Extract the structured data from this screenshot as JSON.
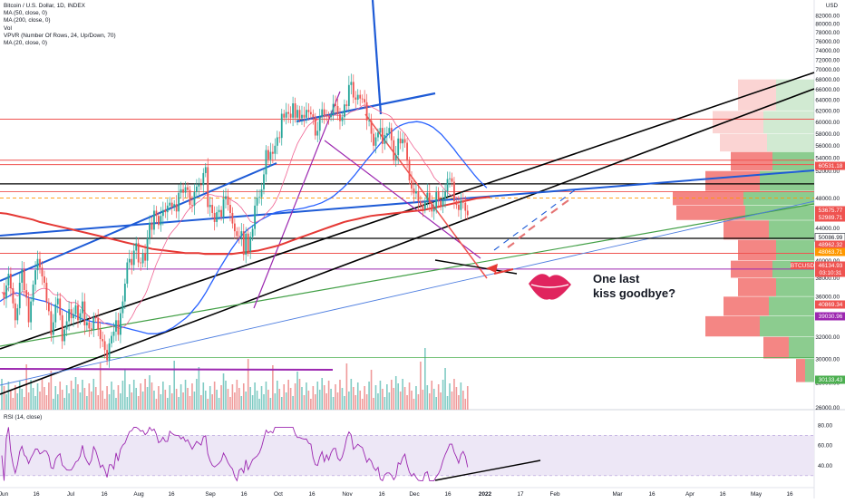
{
  "legend": {
    "title": "Bitcoin / U.S. Dollar, 1D, INDEX",
    "ma50": "MA (50, close, 0)",
    "ma200": "MA (200, close, 0)",
    "vol": "Vol",
    "vpvr": "VPVR (Number Of Rows, 24, Up/Down, 70)",
    "ma20": "MA (20, close, 0)",
    "rsi": "RSI (14, close)"
  },
  "currency": "USD",
  "note": {
    "line1": "One last",
    "line2": "kiss goodbye?"
  },
  "colors": {
    "up": "#26a69a",
    "down": "#ef5350",
    "ma200": "#e53935",
    "ma50": "#2962ff",
    "ma20": "#f06292",
    "trend_black": "#000000",
    "trend_blue": "#1e5bd6",
    "trend_green": "#43a047",
    "purple": "#9c27b0",
    "red_line": "#ef5350",
    "rsi_band": "#ede7f6",
    "rsi_line": "#9c27b0"
  },
  "chart_data": {
    "type": "candlestick",
    "price_axis": {
      "min": 26000,
      "max": 84000,
      "scale": "log",
      "ticks": [
        "82000.00",
        "80000.00",
        "78000.00",
        "76000.00",
        "74000.00",
        "72000.00",
        "70000.00",
        "68000.00",
        "66000.00",
        "64000.00",
        "62000.00",
        "60000.00",
        "58000.00",
        "56000.00",
        "54000.00",
        "52000.00",
        "48000.00",
        "44000.00",
        "42000.00",
        "40000.00",
        "38000.00",
        "36000.00",
        "34000.00",
        "32000.00",
        "30000.00",
        "28000.00",
        "26000.00"
      ]
    },
    "time_axis": {
      "labels": [
        "Jun",
        "16",
        "Jul",
        "16",
        "Aug",
        "16",
        "Sep",
        "16",
        "Oct",
        "16",
        "Nov",
        "16",
        "Dec",
        "16",
        "2022",
        "17",
        "Feb",
        "Mar",
        "16",
        "Apr",
        "16",
        "May",
        "16"
      ]
    },
    "price_labels": [
      {
        "value": "60531.18",
        "color": "#ef5350"
      },
      {
        "value": "53675.77",
        "color": "#ef5350"
      },
      {
        "value": "52989.71",
        "color": "#ef5350"
      },
      {
        "value": "50086.99",
        "color": "#131722"
      },
      {
        "value": "48962.32",
        "color": "#ef5350"
      },
      {
        "value": "48063.71",
        "color": "#ff9800"
      },
      {
        "value": "46134.93",
        "color": "#ef5350"
      },
      {
        "value": "03:10:31",
        "color": "#ef5350"
      },
      {
        "value": "40869.34",
        "color": "#ef5350"
      },
      {
        "value": "39030.96",
        "color": "#9c27b0"
      },
      {
        "value": "30133.43",
        "color": "#4caf50"
      }
    ],
    "symbol_tag": "BTCUSD",
    "rsi_axis": {
      "ticks": [
        "80.00",
        "60.00",
        "40.00"
      ],
      "band": [
        30,
        70
      ]
    },
    "closes": [
      36500,
      35800,
      37200,
      38500,
      36900,
      35300,
      33600,
      34800,
      37500,
      39000,
      36700,
      35900,
      33400,
      35500,
      37300,
      38900,
      40200,
      39200,
      38200,
      37500,
      35400,
      34500,
      32200,
      33400,
      35200,
      35800,
      34100,
      31600,
      32700,
      33500,
      34700,
      33800,
      34200,
      35100,
      33600,
      34300,
      35500,
      33100,
      33400,
      32800,
      32700,
      33900,
      33800,
      32700,
      31800,
      31600,
      30800,
      29900,
      31400,
      32100,
      32500,
      33600,
      32200,
      34300,
      35500,
      37400,
      39800,
      40200,
      39500,
      41200,
      42100,
      39800,
      39700,
      40900,
      40000,
      42700,
      44700,
      43800,
      46300,
      45600,
      44400,
      45600,
      46400,
      46100,
      47000,
      47400,
      46800,
      47200,
      46200,
      48800,
      49300,
      48800,
      49600,
      49200,
      47100,
      47000,
      48900,
      49700,
      50000,
      49900,
      51700,
      52600,
      46800,
      47100,
      46000,
      44800,
      46100,
      46400,
      45500,
      47900,
      48300,
      47100,
      46000,
      44600,
      43600,
      43000,
      42900,
      43600,
      40700,
      43300,
      41100,
      42900,
      43900,
      47000,
      48100,
      48200,
      49300,
      51500,
      55300,
      53800,
      55000,
      54700,
      56000,
      57400,
      57300,
      61500,
      60800,
      61800,
      61500,
      60800,
      63400,
      60800,
      62200,
      60700,
      61300,
      60800,
      62200,
      61800,
      61400,
      60900,
      57700,
      58500,
      60900,
      62300,
      61200,
      61000,
      60900,
      61400,
      63300,
      62900,
      61400,
      60200,
      60900,
      63200,
      62900,
      66900,
      67500,
      64500,
      64100,
      65000,
      64300,
      64200,
      63600,
      60300,
      60300,
      58000,
      56000,
      57400,
      58200,
      59000,
      56300,
      57800,
      58100,
      59000,
      56900,
      53700,
      54500,
      57200,
      56400,
      57100,
      56500,
      53600,
      50600,
      49400,
      48700,
      49000,
      47600,
      47100,
      46500,
      47600,
      48800,
      47400,
      46200,
      46600,
      48900,
      47700,
      46900,
      48000,
      49000,
      50800,
      50900,
      50400,
      47600,
      47100,
      46400,
      47700,
      47400,
      46300,
      45700
    ],
    "ma50": [
      35500,
      35800,
      36000,
      36300,
      36400,
      36300,
      36100,
      35900,
      35800,
      35700,
      35600,
      35500,
      35300,
      35100,
      34900,
      34700,
      34500,
      34300,
      34100,
      33900,
      33700,
      33600,
      33500,
      33400,
      33400,
      33300,
      33300,
      33200,
      33100,
      33000,
      32900,
      32800,
      32700,
      32600,
      32500,
      32400,
      32300,
      32300,
      32300,
      32400,
      32500,
      32700,
      32900,
      33200,
      33500,
      33800,
      34200,
      34700,
      35200,
      35800,
      36500,
      37300,
      38100,
      38900,
      39700,
      40500,
      41300,
      42000,
      42700,
      43300,
      43800,
      44200,
      44600,
      45000,
      45300,
      45600,
      45900,
      46100,
      46200,
      46300,
      46400,
      46400,
      46500,
      46600,
      46700,
      46900,
      47000,
      47200,
      47400,
      47700,
      48000,
      48400,
      48900,
      49400,
      50000,
      50700,
      51400,
      52200,
      53000,
      53800,
      54600,
      55400,
      56200,
      57000,
      57800,
      58400,
      59000,
      59400,
      59700,
      59900,
      60000,
      60100,
      60000,
      59800,
      59500,
      59100,
      58500,
      57900,
      57100,
      56300,
      55500,
      54600,
      53800,
      53000,
      52200,
      51400,
      50700,
      50100,
      49500
    ],
    "ma200": [
      46000,
      45900,
      45700,
      45500,
      45300,
      45100,
      44800,
      44600,
      44400,
      44200,
      44000,
      43800,
      43600,
      43400,
      43200,
      43000,
      42800,
      42600,
      42400,
      42200,
      42000,
      41800,
      41600,
      41400,
      41300,
      41200,
      41100,
      41000,
      40900,
      40900,
      40900,
      40800,
      40800,
      40800,
      40800,
      40800,
      40900,
      41000,
      41100,
      41200,
      41400,
      41600,
      41800,
      42100,
      42400,
      42700,
      43000,
      43300,
      43600,
      43900,
      44200,
      44500,
      44800,
      45000,
      45200,
      45400,
      45600,
      45700,
      45800,
      45900,
      46000,
      46100,
      46200,
      46300,
      46400,
      46600,
      46800,
      47000,
      47200,
      47400,
      47600,
      47800,
      48000,
      48100,
      48200
    ]
  }
}
